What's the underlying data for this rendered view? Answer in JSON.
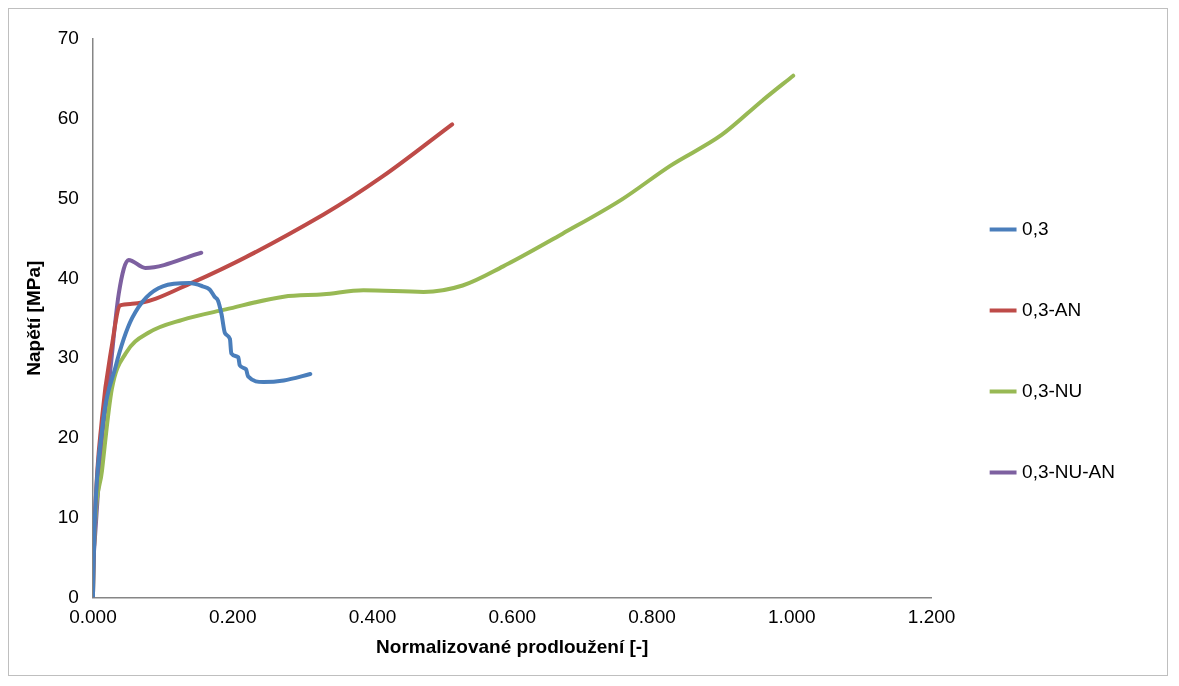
{
  "chart_data": {
    "type": "line",
    "xlabel": "Normalizované prodloužení [-]",
    "ylabel": "Napětí [MPa]",
    "xlim": [
      0,
      1.2
    ],
    "xticks": [
      {
        "value": 0,
        "label": "0.000"
      },
      {
        "value": 0.2,
        "label": "0.200"
      },
      {
        "value": 0.4,
        "label": "0.400"
      },
      {
        "value": 0.6,
        "label": "0.600"
      },
      {
        "value": 0.8,
        "label": "0.800"
      },
      {
        "value": 1,
        "label": "1.000"
      },
      {
        "value": 1.2,
        "label": "1.200"
      }
    ],
    "ylim": [
      0,
      70
    ],
    "yticks": [
      0,
      10,
      20,
      30,
      40,
      50,
      60,
      70
    ],
    "grid": false,
    "legend": "right",
    "marker": "none",
    "line_style": "solid",
    "series": [
      {
        "name": "0,3",
        "color": "#4a7ebb",
        "x": [
          0,
          0.002,
          0.013,
          0.032,
          0.056,
          0.1,
          0.138,
          0.157,
          0.167,
          0.174,
          0.179,
          0.184,
          0.189,
          0.196,
          0.198,
          0.208,
          0.21,
          0.219,
          0.222,
          0.244,
          0.273,
          0.311
        ],
        "values": [
          0,
          8,
          21,
          28.8,
          35,
          39,
          39.4,
          39,
          38.6,
          37.7,
          37.2,
          35.5,
          33.1,
          32.4,
          30.6,
          30.1,
          29.1,
          28.6,
          27.7,
          27,
          27.2,
          28
        ]
      },
      {
        "name": "0,3-AN",
        "color": "#be4b48",
        "x": [
          0,
          0.002,
          0.013,
          0.027,
          0.039,
          0.056,
          0.143,
          0.33,
          0.415,
          0.514
        ],
        "values": [
          0,
          8,
          22.5,
          31.5,
          36.6,
          36.8,
          39.5,
          48,
          52.8,
          59.3
        ]
      },
      {
        "name": "0,3-NU",
        "color": "#98b954",
        "x": [
          0,
          0.001,
          0.013,
          0.027,
          0.047,
          0.08,
          0.128,
          0.19,
          0.273,
          0.33,
          0.387,
          0.473,
          0.529,
          0.587,
          0.672,
          0.757,
          0.826,
          0.9,
          0.958,
          1.002
        ],
        "values": [
          0,
          4.8,
          15.9,
          26.1,
          30.6,
          33.2,
          34.8,
          36.1,
          37.7,
          38,
          38.5,
          38.3,
          39.1,
          41.5,
          45.6,
          49.9,
          54.1,
          58,
          62.3,
          65.4
        ]
      },
      {
        "name": "0,3-NU-AN",
        "color": "#7d60a0",
        "x": [
          0.001,
          0.013,
          0.023,
          0.037,
          0.051,
          0.075,
          0.155
        ],
        "values": [
          5.1,
          19.9,
          27,
          38.1,
          42.3,
          41.3,
          43.2
        ]
      }
    ]
  }
}
